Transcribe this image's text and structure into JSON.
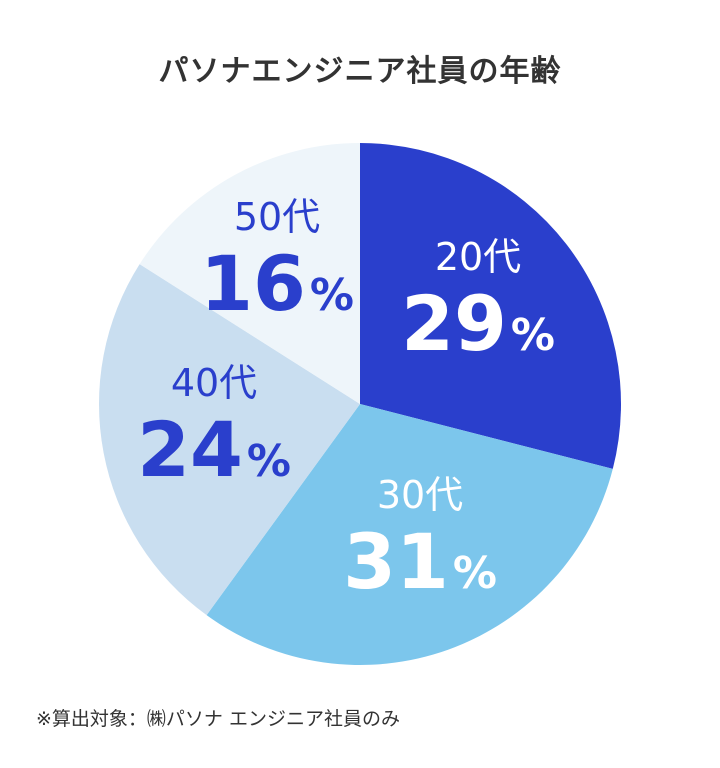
{
  "chart_data": {
    "type": "pie",
    "title": "パソナエンジニア社員の年齢",
    "slices": [
      {
        "label": "20代",
        "value": 29,
        "value_label": "29",
        "color": "#2a3fcc",
        "label_color": "#ffffff"
      },
      {
        "label": "30代",
        "value": 31,
        "value_label": "31",
        "color": "#7cc6ec",
        "label_color": "#ffffff"
      },
      {
        "label": "40代",
        "value": 24,
        "value_label": "24",
        "color": "#c9def0",
        "label_color": "#2a3fcc"
      },
      {
        "label": "50代",
        "value": 16,
        "value_label": "16",
        "color": "#eef5fa",
        "label_color": "#2a3fcc"
      }
    ],
    "unit": "%",
    "start": "12 o'clock",
    "direction": "clockwise",
    "legend": "none"
  },
  "footnote": "※算出対象：㈱パソナ エンジニア社員のみ"
}
